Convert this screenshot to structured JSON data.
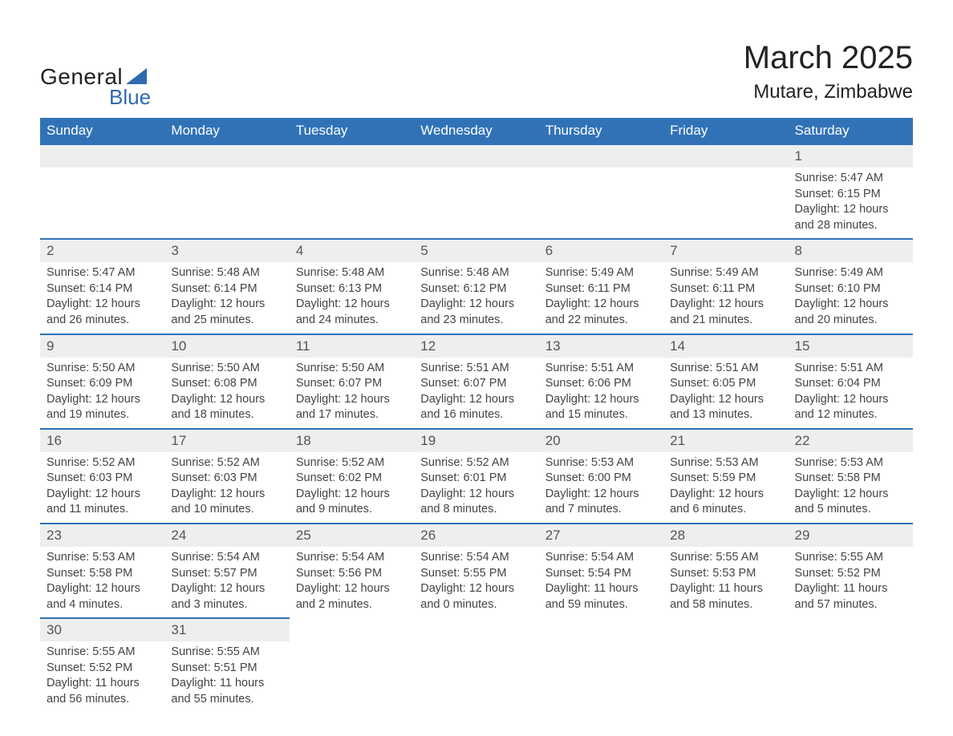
{
  "logo": {
    "word1": "General",
    "word2": "Blue",
    "tri_color": "#2f6aaf",
    "text_color": "#222222"
  },
  "title": "March 2025",
  "location": "Mutare, Zimbabwe",
  "colors": {
    "header_bg": "#3172b7",
    "header_text": "#ffffff",
    "daynum_bg": "#eeeeee",
    "row_border": "#3172b7",
    "body_text": "#444444",
    "page_bg": "#ffffff"
  },
  "fonts": {
    "title_size": 40,
    "location_size": 24,
    "header_size": 17,
    "daynum_size": 17,
    "detail_size": 14.5
  },
  "day_headers": [
    "Sunday",
    "Monday",
    "Tuesday",
    "Wednesday",
    "Thursday",
    "Friday",
    "Saturday"
  ],
  "labels": {
    "sunrise": "Sunrise: ",
    "sunset": "Sunset: ",
    "daylight": "Daylight: "
  },
  "weeks": [
    [
      null,
      null,
      null,
      null,
      null,
      null,
      {
        "n": "1",
        "sr": "5:47 AM",
        "ss": "6:15 PM",
        "dl": "12 hours and 28 minutes."
      }
    ],
    [
      {
        "n": "2",
        "sr": "5:47 AM",
        "ss": "6:14 PM",
        "dl": "12 hours and 26 minutes."
      },
      {
        "n": "3",
        "sr": "5:48 AM",
        "ss": "6:14 PM",
        "dl": "12 hours and 25 minutes."
      },
      {
        "n": "4",
        "sr": "5:48 AM",
        "ss": "6:13 PM",
        "dl": "12 hours and 24 minutes."
      },
      {
        "n": "5",
        "sr": "5:48 AM",
        "ss": "6:12 PM",
        "dl": "12 hours and 23 minutes."
      },
      {
        "n": "6",
        "sr": "5:49 AM",
        "ss": "6:11 PM",
        "dl": "12 hours and 22 minutes."
      },
      {
        "n": "7",
        "sr": "5:49 AM",
        "ss": "6:11 PM",
        "dl": "12 hours and 21 minutes."
      },
      {
        "n": "8",
        "sr": "5:49 AM",
        "ss": "6:10 PM",
        "dl": "12 hours and 20 minutes."
      }
    ],
    [
      {
        "n": "9",
        "sr": "5:50 AM",
        "ss": "6:09 PM",
        "dl": "12 hours and 19 minutes."
      },
      {
        "n": "10",
        "sr": "5:50 AM",
        "ss": "6:08 PM",
        "dl": "12 hours and 18 minutes."
      },
      {
        "n": "11",
        "sr": "5:50 AM",
        "ss": "6:07 PM",
        "dl": "12 hours and 17 minutes."
      },
      {
        "n": "12",
        "sr": "5:51 AM",
        "ss": "6:07 PM",
        "dl": "12 hours and 16 minutes."
      },
      {
        "n": "13",
        "sr": "5:51 AM",
        "ss": "6:06 PM",
        "dl": "12 hours and 15 minutes."
      },
      {
        "n": "14",
        "sr": "5:51 AM",
        "ss": "6:05 PM",
        "dl": "12 hours and 13 minutes."
      },
      {
        "n": "15",
        "sr": "5:51 AM",
        "ss": "6:04 PM",
        "dl": "12 hours and 12 minutes."
      }
    ],
    [
      {
        "n": "16",
        "sr": "5:52 AM",
        "ss": "6:03 PM",
        "dl": "12 hours and 11 minutes."
      },
      {
        "n": "17",
        "sr": "5:52 AM",
        "ss": "6:03 PM",
        "dl": "12 hours and 10 minutes."
      },
      {
        "n": "18",
        "sr": "5:52 AM",
        "ss": "6:02 PM",
        "dl": "12 hours and 9 minutes."
      },
      {
        "n": "19",
        "sr": "5:52 AM",
        "ss": "6:01 PM",
        "dl": "12 hours and 8 minutes."
      },
      {
        "n": "20",
        "sr": "5:53 AM",
        "ss": "6:00 PM",
        "dl": "12 hours and 7 minutes."
      },
      {
        "n": "21",
        "sr": "5:53 AM",
        "ss": "5:59 PM",
        "dl": "12 hours and 6 minutes."
      },
      {
        "n": "22",
        "sr": "5:53 AM",
        "ss": "5:58 PM",
        "dl": "12 hours and 5 minutes."
      }
    ],
    [
      {
        "n": "23",
        "sr": "5:53 AM",
        "ss": "5:58 PM",
        "dl": "12 hours and 4 minutes."
      },
      {
        "n": "24",
        "sr": "5:54 AM",
        "ss": "5:57 PM",
        "dl": "12 hours and 3 minutes."
      },
      {
        "n": "25",
        "sr": "5:54 AM",
        "ss": "5:56 PM",
        "dl": "12 hours and 2 minutes."
      },
      {
        "n": "26",
        "sr": "5:54 AM",
        "ss": "5:55 PM",
        "dl": "12 hours and 0 minutes."
      },
      {
        "n": "27",
        "sr": "5:54 AM",
        "ss": "5:54 PM",
        "dl": "11 hours and 59 minutes."
      },
      {
        "n": "28",
        "sr": "5:55 AM",
        "ss": "5:53 PM",
        "dl": "11 hours and 58 minutes."
      },
      {
        "n": "29",
        "sr": "5:55 AM",
        "ss": "5:52 PM",
        "dl": "11 hours and 57 minutes."
      }
    ],
    [
      {
        "n": "30",
        "sr": "5:55 AM",
        "ss": "5:52 PM",
        "dl": "11 hours and 56 minutes."
      },
      {
        "n": "31",
        "sr": "5:55 AM",
        "ss": "5:51 PM",
        "dl": "11 hours and 55 minutes."
      },
      null,
      null,
      null,
      null,
      null
    ]
  ]
}
